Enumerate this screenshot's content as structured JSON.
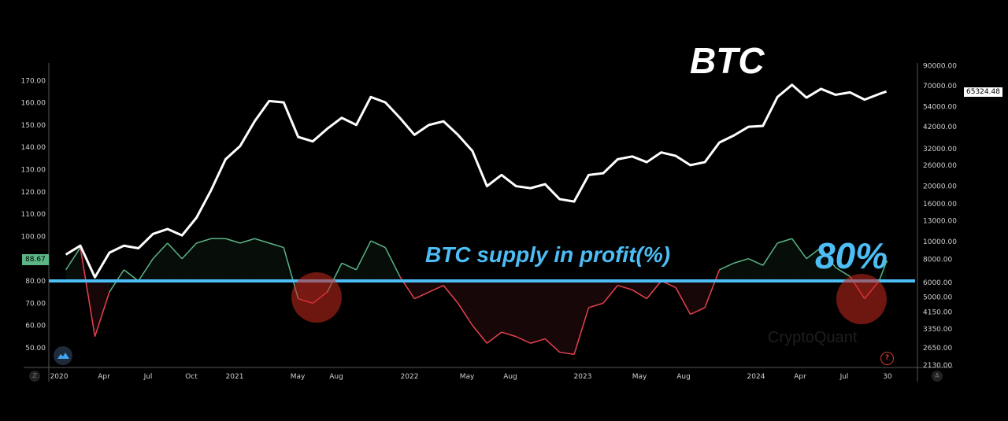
{
  "chart_data": {
    "type": "line",
    "title": "BTC",
    "annotations": [
      "BTC supply in profit(%)",
      "80%"
    ],
    "x": [
      "2020-01",
      "2020-02",
      "2020-03",
      "2020-04",
      "2020-05",
      "2020-06",
      "2020-07",
      "2020-08",
      "2020-09",
      "2020-10",
      "2020-11",
      "2020-12",
      "2021-01",
      "2021-02",
      "2021-03",
      "2021-04",
      "2021-05",
      "2021-06",
      "2021-07",
      "2021-08",
      "2021-09",
      "2021-10",
      "2021-11",
      "2021-12",
      "2022-01",
      "2022-02",
      "2022-03",
      "2022-04",
      "2022-05",
      "2022-06",
      "2022-07",
      "2022-08",
      "2022-09",
      "2022-10",
      "2022-11",
      "2022-12",
      "2023-01",
      "2023-02",
      "2023-03",
      "2023-04",
      "2023-05",
      "2023-06",
      "2023-07",
      "2023-08",
      "2023-09",
      "2023-10",
      "2023-11",
      "2023-12",
      "2024-01",
      "2024-02",
      "2024-03",
      "2024-04",
      "2024-05",
      "2024-06",
      "2024-07",
      "2024-08",
      "2024-09",
      "2024-09-30"
    ],
    "series": [
      {
        "name": "BTC",
        "axis": "right",
        "color": "#ffffff",
        "values": [
          8500,
          9500,
          6400,
          8700,
          9500,
          9200,
          11000,
          11700,
          10800,
          13500,
          19000,
          28000,
          33000,
          45000,
          58000,
          57000,
          37000,
          35000,
          41000,
          47000,
          43000,
          61000,
          57000,
          47000,
          38000,
          43000,
          45000,
          38000,
          31000,
          20000,
          23000,
          20000,
          19500,
          20500,
          17000,
          16500,
          23000,
          23500,
          28000,
          29000,
          27000,
          30500,
          29200,
          26000,
          27000,
          34500,
          37700,
          42000,
          42500,
          61000,
          71000,
          60500,
          67500,
          62700,
          64600,
          59000,
          63300,
          65324.48
        ]
      },
      {
        "name": "BTC supply in profit(%)",
        "axis": "left",
        "color_above": "#5bb585",
        "color_below": "#e5424f",
        "values": [
          85,
          95,
          55,
          75,
          85,
          80,
          90,
          97,
          90,
          97,
          99,
          99,
          97,
          99,
          97,
          95,
          72,
          70,
          75,
          88,
          85,
          98,
          95,
          82,
          72,
          75,
          78,
          70,
          60,
          52,
          57,
          55,
          52,
          54,
          48,
          47,
          68,
          70,
          78,
          76,
          72,
          80,
          77,
          65,
          68,
          85,
          88,
          90,
          87,
          97,
          99,
          90,
          95,
          86,
          82,
          72,
          80,
          88.67
        ]
      }
    ],
    "threshold": {
      "value": 80,
      "label": "80%",
      "color": "#4dbdf5"
    },
    "left_axis": {
      "ticks": [
        "170.00",
        "160.00",
        "150.00",
        "140.00",
        "130.00",
        "120.00",
        "110.00",
        "100.00",
        "80.00",
        "70.00",
        "60.00",
        "50.00"
      ],
      "current": "88.67",
      "range": [
        45,
        172
      ]
    },
    "right_axis": {
      "scale": "log",
      "ticks": [
        "90000.00",
        "70000.00",
        "54000.00",
        "42000.00",
        "32000.00",
        "26000.00",
        "20000.00",
        "16000.00",
        "13000.00",
        "10000.00",
        "8000.00",
        "6000.00",
        "5000.00",
        "4150.00",
        "3350.00",
        "2650.00",
        "2130.00"
      ],
      "current": "65324.48"
    },
    "x_ticks": [
      "2020",
      "Apr",
      "Jul",
      "Oct",
      "2021",
      "May",
      "Aug",
      "2022",
      "May",
      "Aug",
      "2023",
      "May",
      "Aug",
      "2024",
      "Apr",
      "Jul",
      "30"
    ],
    "highlights": [
      "2021-06",
      "2024-08"
    ],
    "grid": false
  },
  "ui": {
    "watermark": "CryptoQuant",
    "help": "?",
    "z_button": "Z",
    "a_button": "A"
  }
}
